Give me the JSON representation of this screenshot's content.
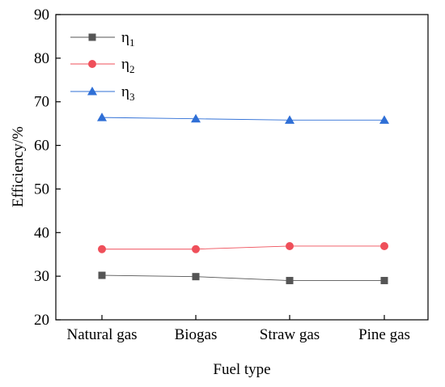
{
  "chart_data": {
    "type": "line",
    "categories": [
      "Natural gas",
      "Biogas",
      "Straw gas",
      "Pine gas"
    ],
    "xlabel": "Fuel type",
    "ylabel": "Efficiency/%",
    "ylim": [
      20,
      90
    ],
    "yticks": [
      20,
      30,
      40,
      50,
      60,
      70,
      80,
      90
    ],
    "grid": false,
    "legend_position": "top-left",
    "series": [
      {
        "name": "η",
        "subscript": "1",
        "values": [
          30.2,
          29.9,
          29.0,
          29.0
        ],
        "color": "#555555",
        "marker": "square"
      },
      {
        "name": "η",
        "subscript": "2",
        "values": [
          36.2,
          36.2,
          36.9,
          36.9
        ],
        "color": "#ef4f5a",
        "marker": "circle"
      },
      {
        "name": "η",
        "subscript": "3",
        "values": [
          66.4,
          66.1,
          65.8,
          65.8
        ],
        "color": "#2f6fd6",
        "marker": "triangle"
      }
    ]
  }
}
